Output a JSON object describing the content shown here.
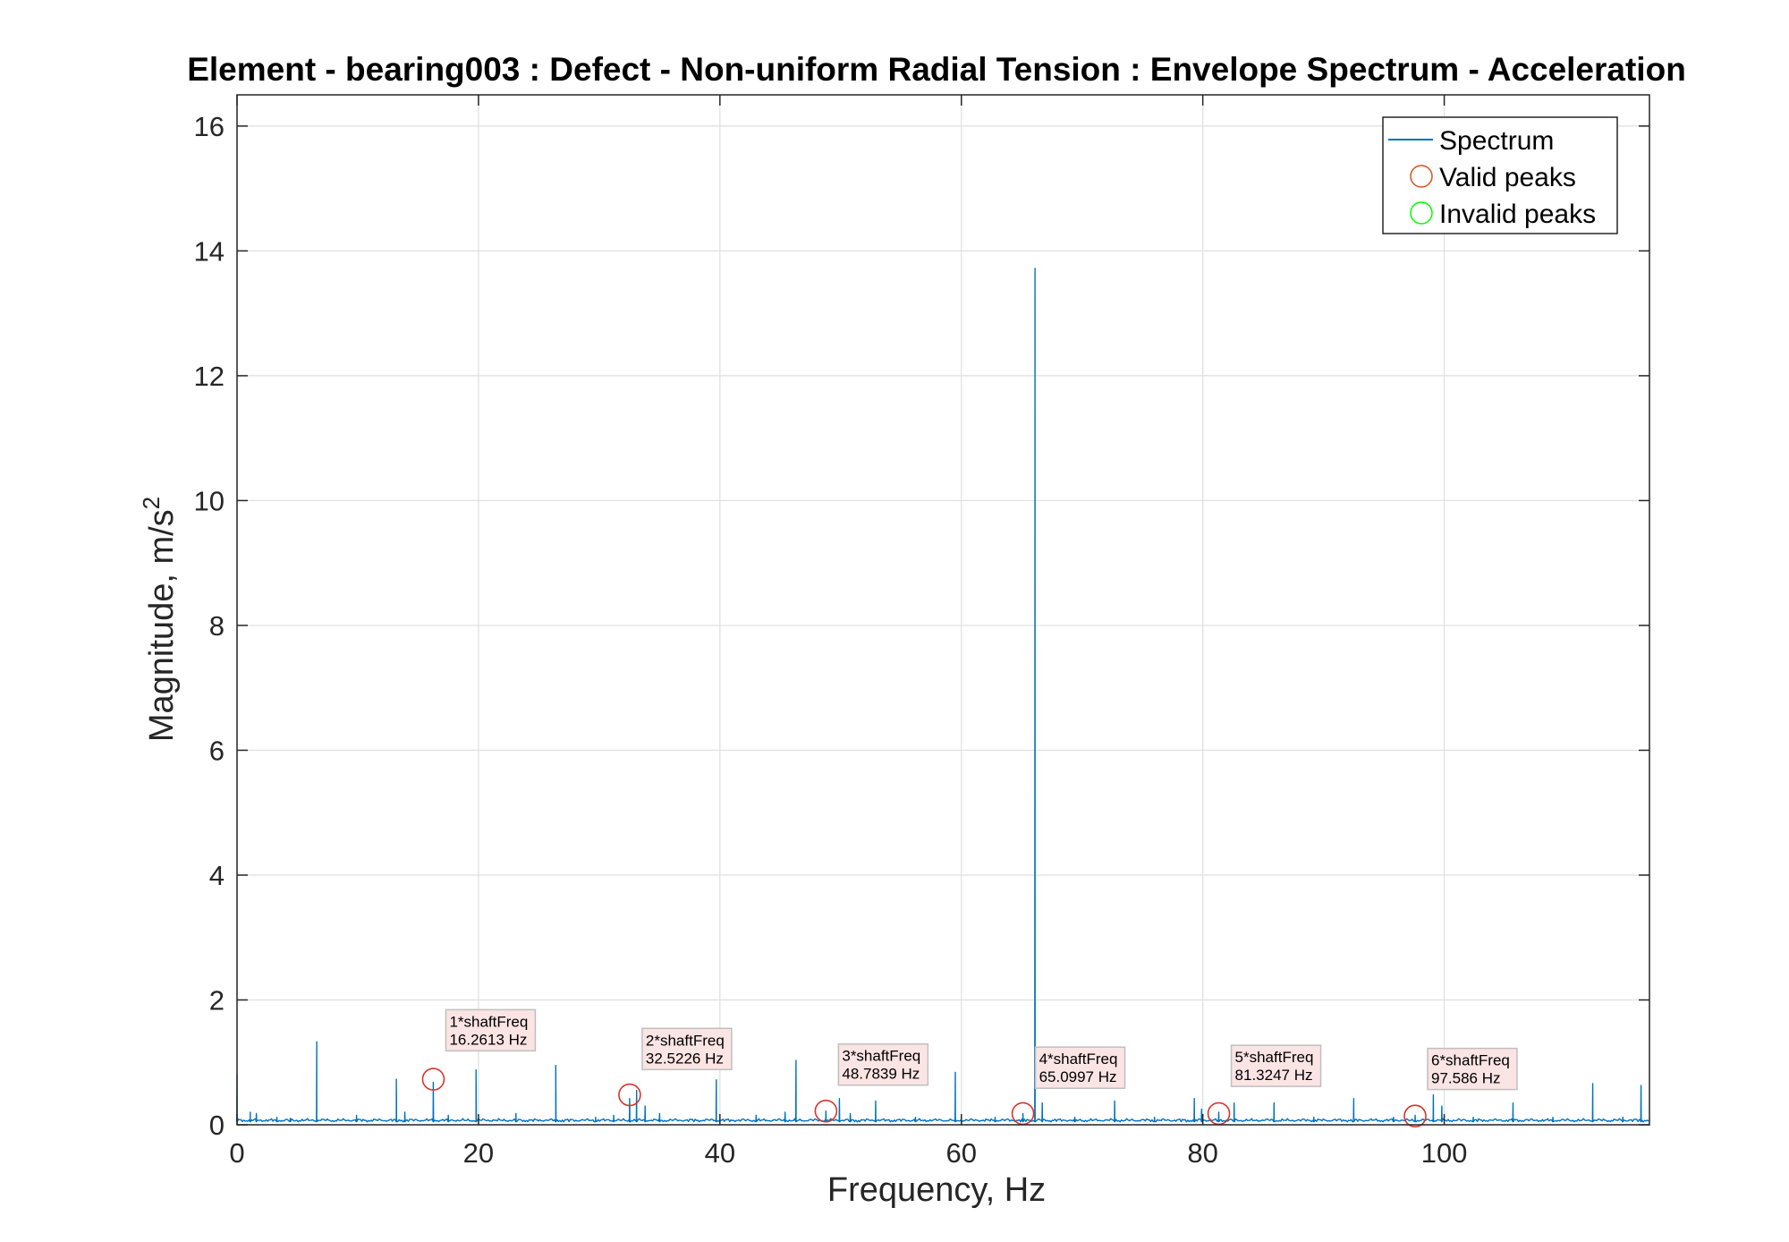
{
  "chart_data": {
    "type": "line",
    "title": "Element - bearing003 : Defect - Non-uniform Radial Tension : Envelope Spectrum - Acceleration",
    "xlabel": "Frequency, Hz",
    "ylabel_main": "Magnitude, m/s",
    "ylabel_sup": "2",
    "xlim": [
      0,
      117
    ],
    "ylim": [
      0,
      16.5
    ],
    "xticks": [
      0,
      20,
      40,
      60,
      80,
      100
    ],
    "yticks": [
      0,
      2,
      4,
      6,
      8,
      10,
      12,
      14,
      16
    ],
    "grid": true,
    "legend_position": "top-right",
    "colors": {
      "spectrum": "#0072BD",
      "valid_peaks": "#D95319",
      "invalid_peaks": "#00FF00",
      "annotation_bg": "#FBE4E4",
      "annotation_border": "#BFBFBF"
    },
    "legend": [
      {
        "label": "Spectrum",
        "marker": "line"
      },
      {
        "label": "Valid peaks",
        "marker": "circle-red"
      },
      {
        "label": "Invalid peaks",
        "marker": "circle-green"
      }
    ],
    "spectrum_peaks": [
      {
        "x": 0.0,
        "y": 0.8
      },
      {
        "x": 1.1,
        "y": 0.2
      },
      {
        "x": 1.6,
        "y": 0.18
      },
      {
        "x": 3.3,
        "y": 0.12
      },
      {
        "x": 4.4,
        "y": 0.1
      },
      {
        "x": 6.6,
        "y": 1.33
      },
      {
        "x": 9.9,
        "y": 0.15
      },
      {
        "x": 13.2,
        "y": 0.73
      },
      {
        "x": 13.9,
        "y": 0.2
      },
      {
        "x": 16.26,
        "y": 0.68
      },
      {
        "x": 17.5,
        "y": 0.15
      },
      {
        "x": 19.8,
        "y": 0.88
      },
      {
        "x": 23.1,
        "y": 0.18
      },
      {
        "x": 26.4,
        "y": 0.95
      },
      {
        "x": 29.7,
        "y": 0.12
      },
      {
        "x": 31.2,
        "y": 0.15
      },
      {
        "x": 32.52,
        "y": 0.42
      },
      {
        "x": 33.1,
        "y": 0.55
      },
      {
        "x": 33.8,
        "y": 0.3
      },
      {
        "x": 35.0,
        "y": 0.18
      },
      {
        "x": 39.7,
        "y": 0.72
      },
      {
        "x": 43.0,
        "y": 0.15
      },
      {
        "x": 45.4,
        "y": 0.2
      },
      {
        "x": 46.3,
        "y": 1.03
      },
      {
        "x": 48.78,
        "y": 0.22
      },
      {
        "x": 49.9,
        "y": 0.42
      },
      {
        "x": 50.8,
        "y": 0.18
      },
      {
        "x": 52.9,
        "y": 0.38
      },
      {
        "x": 56.2,
        "y": 0.12
      },
      {
        "x": 59.5,
        "y": 0.84
      },
      {
        "x": 62.8,
        "y": 0.12
      },
      {
        "x": 65.1,
        "y": 0.18
      },
      {
        "x": 66.1,
        "y": 13.72
      },
      {
        "x": 66.7,
        "y": 0.35
      },
      {
        "x": 69.4,
        "y": 0.12
      },
      {
        "x": 72.7,
        "y": 0.38
      },
      {
        "x": 76.0,
        "y": 0.12
      },
      {
        "x": 79.3,
        "y": 0.42
      },
      {
        "x": 79.9,
        "y": 0.25
      },
      {
        "x": 81.32,
        "y": 0.2
      },
      {
        "x": 82.6,
        "y": 0.35
      },
      {
        "x": 85.9,
        "y": 0.35
      },
      {
        "x": 89.2,
        "y": 0.12
      },
      {
        "x": 92.5,
        "y": 0.42
      },
      {
        "x": 95.8,
        "y": 0.12
      },
      {
        "x": 97.59,
        "y": 0.15
      },
      {
        "x": 99.1,
        "y": 0.48
      },
      {
        "x": 99.8,
        "y": 0.3
      },
      {
        "x": 102.4,
        "y": 0.12
      },
      {
        "x": 105.7,
        "y": 0.35
      },
      {
        "x": 109.0,
        "y": 0.12
      },
      {
        "x": 112.3,
        "y": 0.66
      },
      {
        "x": 114.8,
        "y": 0.12
      },
      {
        "x": 116.3,
        "y": 0.63
      }
    ],
    "valid_peaks": [
      {
        "x": 16.2613,
        "y": 0.73,
        "label_line1": "1*shaftFreq",
        "label_line2": "16.2613 Hz",
        "label_y": 1.5
      },
      {
        "x": 32.5226,
        "y": 0.48,
        "label_line1": "2*shaftFreq",
        "label_line2": "32.5226 Hz",
        "label_y": 1.2
      },
      {
        "x": 48.7839,
        "y": 0.22,
        "label_line1": "3*shaftFreq",
        "label_line2": "48.7839 Hz",
        "label_y": 0.95
      },
      {
        "x": 65.0997,
        "y": 0.18,
        "label_line1": "4*shaftFreq",
        "label_line2": "65.0997 Hz",
        "label_y": 0.9
      },
      {
        "x": 81.3247,
        "y": 0.18,
        "label_line1": "5*shaftFreq",
        "label_line2": "81.3247 Hz",
        "label_y": 0.93
      },
      {
        "x": 97.586,
        "y": 0.14,
        "label_line1": "6*shaftFreq",
        "label_line2": "97.586 Hz",
        "label_y": 0.88
      }
    ],
    "invalid_peaks": []
  }
}
